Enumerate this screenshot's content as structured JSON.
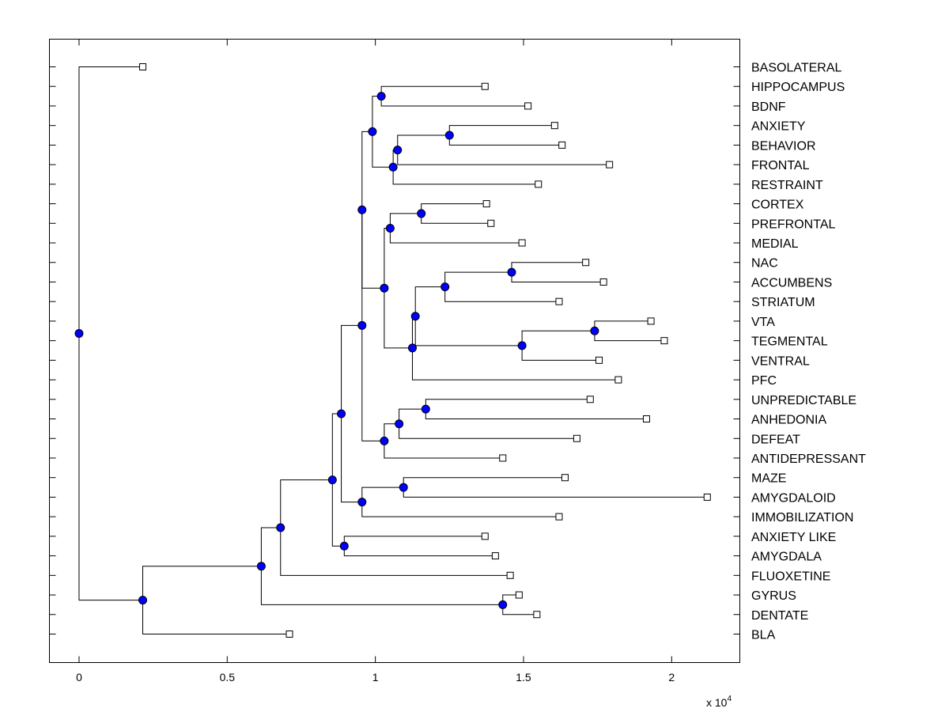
{
  "chart_data": {
    "type": "dendrogram",
    "orientation": "leaves-right",
    "title": "",
    "xlabel": "",
    "ylabel": "",
    "x_multiplier_label": "x 10",
    "x_multiplier_exponent": "4",
    "xlim": [
      -1000,
      22300
    ],
    "x_ticks": [
      {
        "value": 0,
        "label": "0"
      },
      {
        "value": 5000,
        "label": "0.5"
      },
      {
        "value": 10000,
        "label": "1"
      },
      {
        "value": 15000,
        "label": "1.5"
      },
      {
        "value": 20000,
        "label": "2"
      }
    ],
    "grid": false,
    "colors": {
      "internal_node": "#0000ff",
      "leaf_node": "#ffffff",
      "line": "#000000"
    },
    "leaves": [
      {
        "label": "BASOLATERAL",
        "x": 2150
      },
      {
        "label": "HIPPOCAMPUS",
        "x": 13700
      },
      {
        "label": "BDNF",
        "x": 15150
      },
      {
        "label": "ANXIETY",
        "x": 16050
      },
      {
        "label": "BEHAVIOR",
        "x": 16300
      },
      {
        "label": "FRONTAL",
        "x": 17900
      },
      {
        "label": "RESTRAINT",
        "x": 15500
      },
      {
        "label": "CORTEX",
        "x": 13750
      },
      {
        "label": "PREFRONTAL",
        "x": 13900
      },
      {
        "label": "MEDIAL",
        "x": 14950
      },
      {
        "label": "NAC",
        "x": 17100
      },
      {
        "label": "ACCUMBENS",
        "x": 17700
      },
      {
        "label": "STRIATUM",
        "x": 16200
      },
      {
        "label": "VTA",
        "x": 19300
      },
      {
        "label": "TEGMENTAL",
        "x": 19750
      },
      {
        "label": "VENTRAL",
        "x": 17550
      },
      {
        "label": "PFC",
        "x": 18200
      },
      {
        "label": "UNPREDICTABLE",
        "x": 17250
      },
      {
        "label": "ANHEDONIA",
        "x": 19150
      },
      {
        "label": "DEFEAT",
        "x": 16800
      },
      {
        "label": "ANTIDEPRESSANT",
        "x": 14300
      },
      {
        "label": "MAZE",
        "x": 16400
      },
      {
        "label": "AMYGDALOID",
        "x": 21200
      },
      {
        "label": "IMMOBILIZATION",
        "x": 16200
      },
      {
        "label": "ANXIETY LIKE",
        "x": 13700
      },
      {
        "label": "AMYGDALA",
        "x": 14050
      },
      {
        "label": "FLUOXETINE",
        "x": 14550
      },
      {
        "label": "GYRUS",
        "x": 14850
      },
      {
        "label": "DENTATE",
        "x": 15450
      },
      {
        "label": "BLA",
        "x": 7100
      }
    ],
    "merges": [
      {
        "id": "m1",
        "x": 10200,
        "children": [
          1,
          2
        ]
      },
      {
        "id": "m2",
        "x": 12500,
        "children": [
          3,
          4
        ]
      },
      {
        "id": "m3",
        "x": 10750,
        "children": [
          "m2",
          5
        ]
      },
      {
        "id": "m4",
        "x": 10600,
        "children": [
          "m3",
          6
        ]
      },
      {
        "id": "m5",
        "x": 9900,
        "children": [
          "m1",
          "m4"
        ]
      },
      {
        "id": "m6",
        "x": 11550,
        "children": [
          7,
          8
        ]
      },
      {
        "id": "m7",
        "x": 10500,
        "children": [
          "m6",
          9
        ]
      },
      {
        "id": "m8",
        "x": 14600,
        "children": [
          10,
          11
        ]
      },
      {
        "id": "m9",
        "x": 12350,
        "children": [
          "m8",
          12
        ]
      },
      {
        "id": "m10",
        "x": 17400,
        "children": [
          13,
          14
        ]
      },
      {
        "id": "m11",
        "x": 14950,
        "children": [
          "m10",
          15
        ]
      },
      {
        "id": "m12",
        "x": 11350,
        "children": [
          "m9",
          "m11"
        ]
      },
      {
        "id": "m13",
        "x": 11250,
        "children": [
          "m12",
          16
        ]
      },
      {
        "id": "m14",
        "x": 10300,
        "children": [
          "m7",
          "m13"
        ]
      },
      {
        "id": "m15",
        "x": 9550,
        "children": [
          "m5",
          "m14"
        ]
      },
      {
        "id": "m16",
        "x": 11700,
        "children": [
          17,
          18
        ]
      },
      {
        "id": "m17",
        "x": 10800,
        "children": [
          "m16",
          19
        ]
      },
      {
        "id": "m18",
        "x": 10300,
        "children": [
          "m17",
          20
        ]
      },
      {
        "id": "m19",
        "x": 9550,
        "children": [
          "m15",
          "m18"
        ]
      },
      {
        "id": "m20",
        "x": 10950,
        "children": [
          21,
          22
        ]
      },
      {
        "id": "m21",
        "x": 9550,
        "children": [
          "m20",
          23
        ]
      },
      {
        "id": "m22",
        "x": 8850,
        "children": [
          "m19",
          "m21"
        ]
      },
      {
        "id": "m23",
        "x": 8950,
        "children": [
          24,
          25
        ]
      },
      {
        "id": "m24",
        "x": 8550,
        "children": [
          "m22",
          "m23"
        ]
      },
      {
        "id": "m25",
        "x": 6800,
        "children": [
          "m24",
          26
        ]
      },
      {
        "id": "m26",
        "x": 14300,
        "children": [
          27,
          28
        ]
      },
      {
        "id": "m27",
        "x": 6150,
        "children": [
          "m25",
          "m26"
        ]
      },
      {
        "id": "m28",
        "x": 2150,
        "children": [
          "m27",
          29
        ]
      },
      {
        "id": "m29",
        "x": 0,
        "children": [
          0,
          "m28"
        ]
      }
    ]
  }
}
